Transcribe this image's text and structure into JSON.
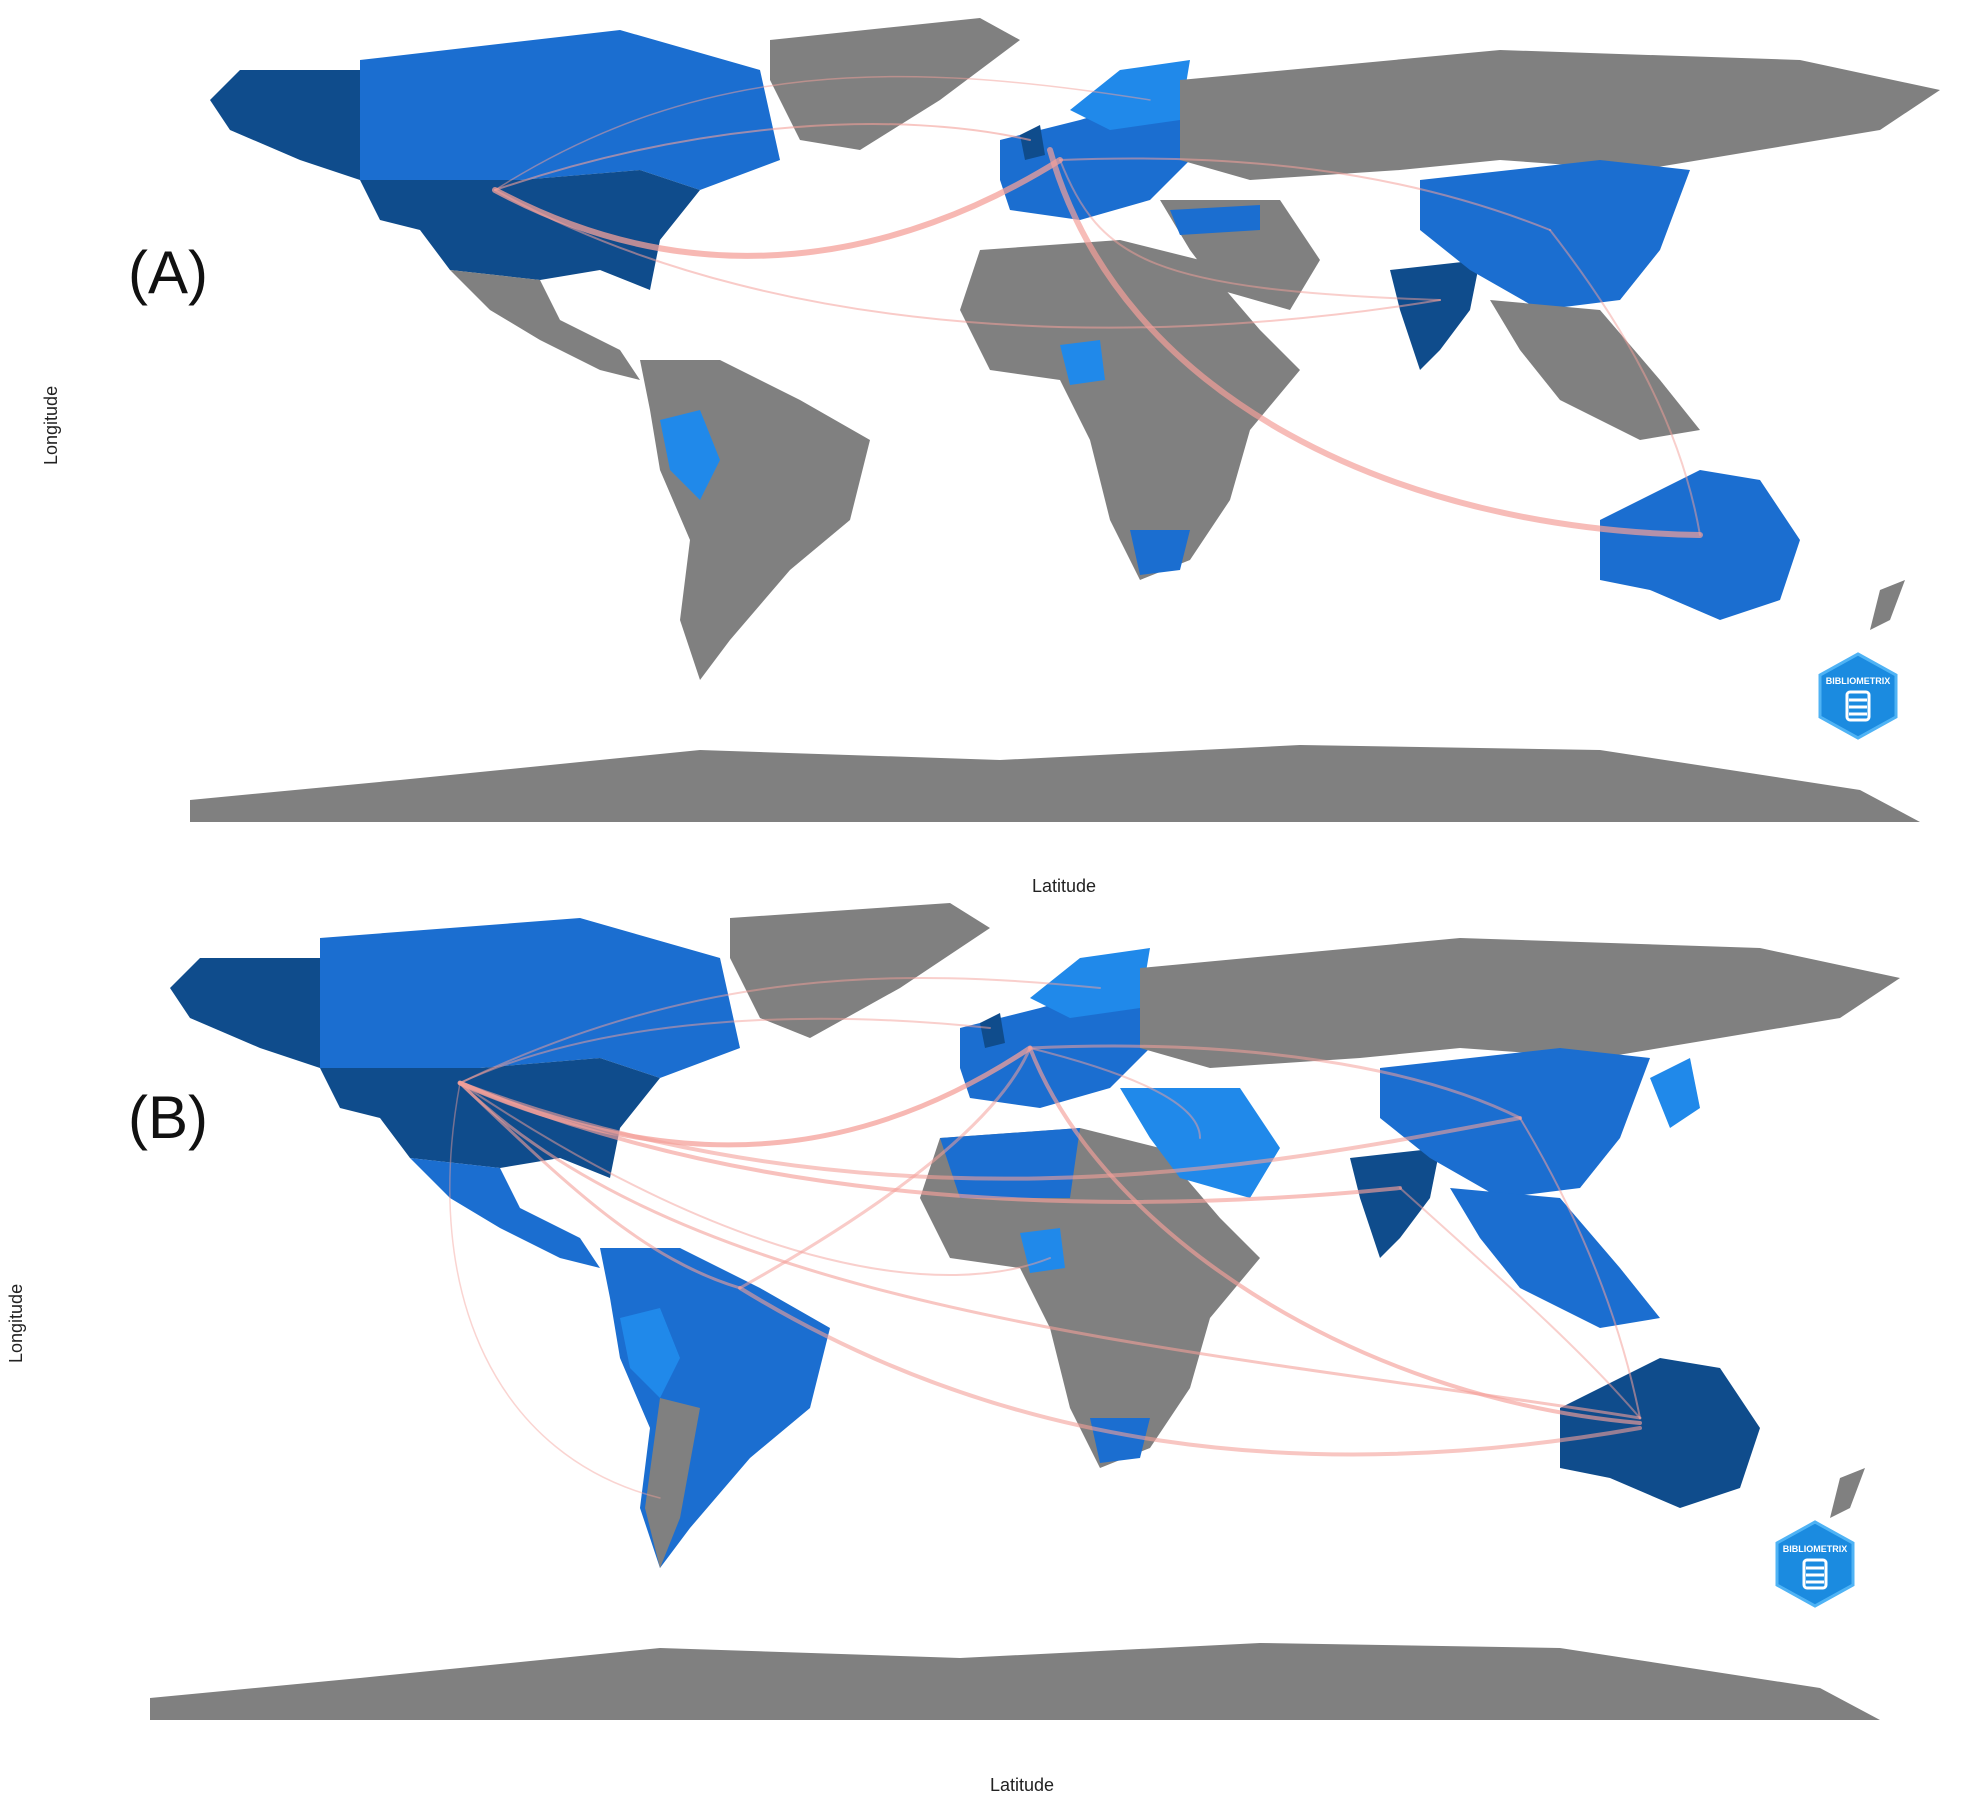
{
  "panels": [
    {
      "id": "A",
      "label": "(A)",
      "xlabel": "Latitude",
      "ylabel": "Longitude",
      "logo_text": "BIBLIOMETRIX"
    },
    {
      "id": "B",
      "label": "(B)",
      "xlabel": "Latitude",
      "ylabel": "Longitude",
      "logo_text": "BIBLIOMETRIX"
    }
  ],
  "colors": {
    "land": "#808080",
    "collab_dark": "#0f4c8c",
    "collab_mid": "#1b6ed0",
    "collab_light": "#2089ea",
    "link": "#f4a09a",
    "background": "#ffffff"
  }
}
